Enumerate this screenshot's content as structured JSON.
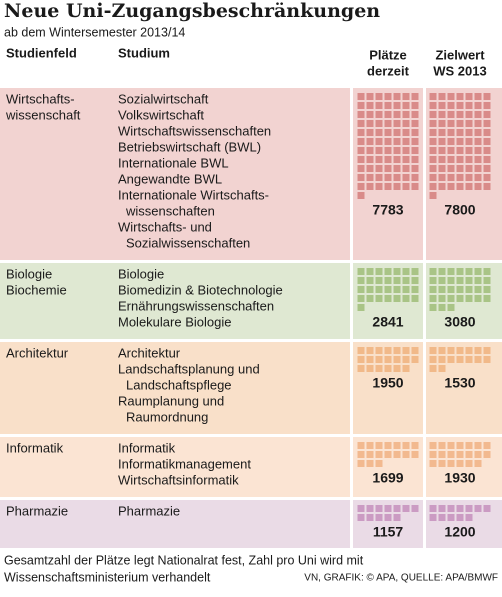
{
  "header": {
    "title": "Neue Uni-Zugangsbeschränkungen",
    "subtitle": "ab dem Wintersemester 2013/14"
  },
  "table": {
    "columns": [
      [
        "Studienfeld"
      ],
      [
        "Studium"
      ],
      [
        "Plätze",
        "derzeit"
      ],
      [
        "Zielwert",
        "WS 2013"
      ]
    ],
    "rows": [
      {
        "field": [
          "Wirtschafts-",
          "wissenschaft"
        ],
        "programs": [
          [
            "Sozialwirtschaft"
          ],
          [
            "Volkswirtschaft"
          ],
          [
            "Wirtschaftswissenschaften"
          ],
          [
            "Betriebswirtschaft (BWL)"
          ],
          [
            "Internationale BWL"
          ],
          [
            "Angewandte BWL"
          ],
          [
            "Internationale Wirtschafts-",
            "wissenschaften"
          ],
          [
            "Wirtschafts- und",
            "Sozialwissenschaften"
          ]
        ],
        "current": 7783,
        "target": 7800
      },
      {
        "field": [
          "Biologie",
          "Biochemie"
        ],
        "programs": [
          [
            "Biologie"
          ],
          [
            "Biomedizin & Biotechnologie"
          ],
          [
            "Ernährungswissenschaften"
          ],
          [
            "Molekulare Biologie"
          ]
        ],
        "current": 2841,
        "target": 3080
      },
      {
        "field": [
          "Architektur"
        ],
        "programs": [
          [
            "Architektur"
          ],
          [
            "Landschaftsplanung und",
            "Landschaftspflege"
          ],
          [
            "Raumplanung und",
            "Raumordnung"
          ]
        ],
        "current": 1950,
        "target": 1530
      },
      {
        "field": [
          "Informatik"
        ],
        "programs": [
          [
            "Informatik"
          ],
          [
            "Informatikmanagement"
          ],
          [
            "Wirtschaftsinformatik"
          ]
        ],
        "current": 1699,
        "target": 1930
      },
      {
        "field": [
          "Pharmazie"
        ],
        "programs": [
          [
            "Pharmazie"
          ]
        ],
        "current": 1157,
        "target": 1200
      }
    ]
  },
  "footer": {
    "note": [
      "Gesamtzahl der Plätze legt Nationalrat fest, Zahl pro Uni wird mit",
      "Wissenschaftsministerium verhandelt"
    ],
    "source": "VN, GRAFIK: © APA, QUELLE: APA/BMWF"
  }
}
